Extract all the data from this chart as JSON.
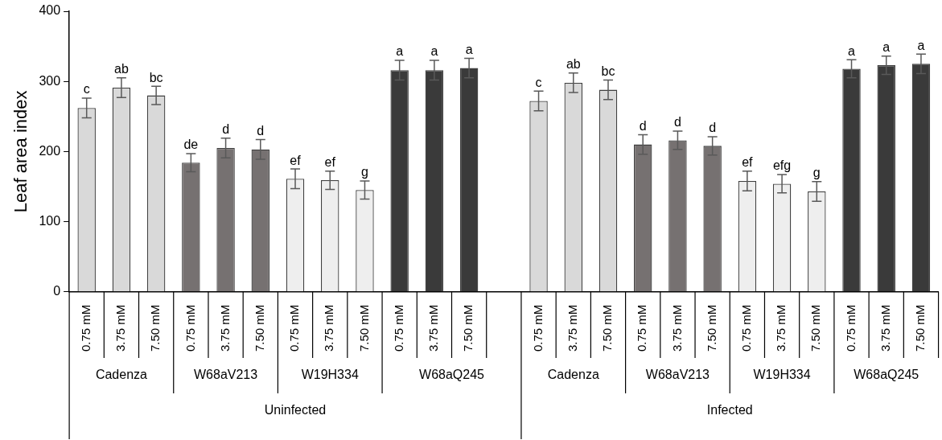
{
  "chart_data": {
    "type": "bar",
    "ylabel": "Leaf area index",
    "categories": [
      "0.75 mM",
      "3.75 mM",
      "7.50 mM",
      "0.75 mM",
      "3.75 mM",
      "7.50 mM",
      "0.75 mM",
      "3.75 mM",
      "7.50 mM",
      "0.75 mM",
      "3.75 mM",
      "7.50 mM",
      null,
      "0.75 mM",
      "3.75 mM",
      "7.50 mM",
      "0.75 mM",
      "3.75 mM",
      "7.50 mM",
      "0.75 mM",
      "3.75 mM",
      "7.50 mM",
      "0.75 mM",
      "3.75 mM",
      "7.50 mM"
    ],
    "values": [
      262,
      291,
      280,
      184,
      205,
      203,
      161,
      159,
      145,
      316,
      316,
      319,
      null,
      272,
      298,
      288,
      210,
      216,
      208,
      158,
      154,
      143,
      318,
      323,
      325
    ],
    "errors": [
      14,
      14,
      13,
      13,
      14,
      14,
      14,
      13,
      13,
      14,
      14,
      14,
      null,
      14,
      14,
      14,
      14,
      13,
      13,
      14,
      13,
      14,
      13,
      13,
      14
    ],
    "value_labels": [
      "c",
      "ab",
      "bc",
      "de",
      "d",
      "d",
      "ef",
      "ef",
      "g",
      "a",
      "a",
      "a",
      null,
      "c",
      "ab",
      "bc",
      "d",
      "d",
      "d",
      "ef",
      "efg",
      "g",
      "a",
      "a",
      "a"
    ],
    "colors": [
      "#d9d9d9",
      "#d9d9d9",
      "#d9d9d9",
      "#767171",
      "#767171",
      "#767171",
      "#eeeeee",
      "#eeeeee",
      "#eeeeee",
      "#3a3a3a",
      "#3a3a3a",
      "#3a3a3a",
      "#ffffff",
      "#d9d9d9",
      "#d9d9d9",
      "#d9d9d9",
      "#767171",
      "#767171",
      "#767171",
      "#eeeeee",
      "#eeeeee",
      "#eeeeee",
      "#3a3a3a",
      "#3a3a3a",
      "#3a3a3a"
    ],
    "annotations": [
      "Cadenza",
      "W68aV213",
      "W19H334",
      "W68aQ245",
      "Cadenza",
      "W68aV213",
      "W19H334",
      "W68aQ245",
      "Uninfected",
      "Infected"
    ],
    "ylim": [
      0,
      400
    ],
    "yticks": [
      0,
      100,
      200,
      300,
      400
    ]
  }
}
